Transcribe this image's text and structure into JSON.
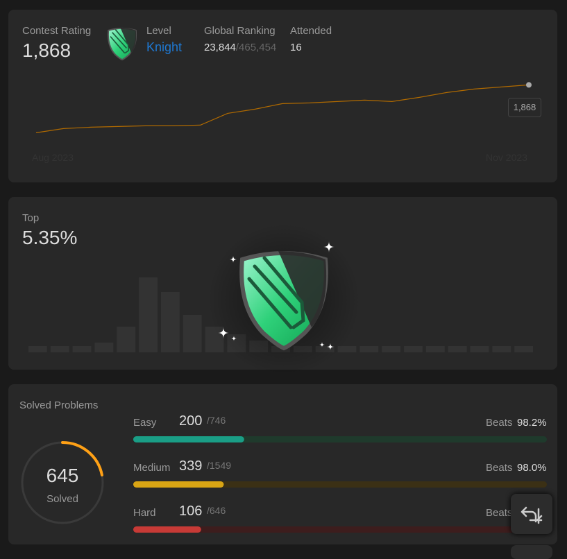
{
  "contest": {
    "rating_label": "Contest Rating",
    "rating": "1,868",
    "level_label": "Level",
    "level": "Knight",
    "ranking_label": "Global Ranking",
    "ranking": "23,844",
    "ranking_total": "/465,454",
    "attended_label": "Attended",
    "attended": "16",
    "chart": {
      "type": "line",
      "x_start": "Aug 2023",
      "x_end": "Nov 2023",
      "color": "#b06a00",
      "values": [
        1523,
        1553,
        1563,
        1568,
        1573,
        1573,
        1578,
        1663,
        1693,
        1733,
        1738,
        1748,
        1758,
        1748,
        1778,
        1813,
        1838,
        1853,
        1868
      ],
      "ylim": [
        1500,
        1880
      ],
      "last_label": "1,868"
    }
  },
  "top": {
    "label": "Top",
    "value": "5.35%",
    "chart": {
      "type": "bar",
      "color": "#333333",
      "values": [
        9,
        9,
        9,
        14,
        37,
        108,
        87,
        54,
        37,
        26,
        17,
        9,
        9,
        9,
        9,
        9,
        9,
        9,
        9,
        9,
        9,
        9,
        9
      ],
      "ylim": [
        0,
        110
      ]
    }
  },
  "solved": {
    "title": "Solved Problems",
    "count": "645",
    "count_label": "Solved",
    "ring_color": "#ffa116",
    "count_value": 645,
    "levels": [
      {
        "name": "Easy",
        "solved": 200,
        "total": 746,
        "total_label": "/746",
        "beats_label": "Beats",
        "beats": "98.2%",
        "color": "#1a9e86",
        "track": "#1f3a2c"
      },
      {
        "name": "Medium",
        "solved": 339,
        "total": 1549,
        "total_label": "/1549",
        "beats_label": "Beats",
        "beats": "98.0%",
        "color": "#d9a514",
        "track": "#3b3015"
      },
      {
        "name": "Hard",
        "solved": 106,
        "total": 646,
        "total_label": "/646",
        "beats_label": "Beats",
        "color": "#c73a36",
        "track": "#3d1d1d"
      }
    ]
  }
}
